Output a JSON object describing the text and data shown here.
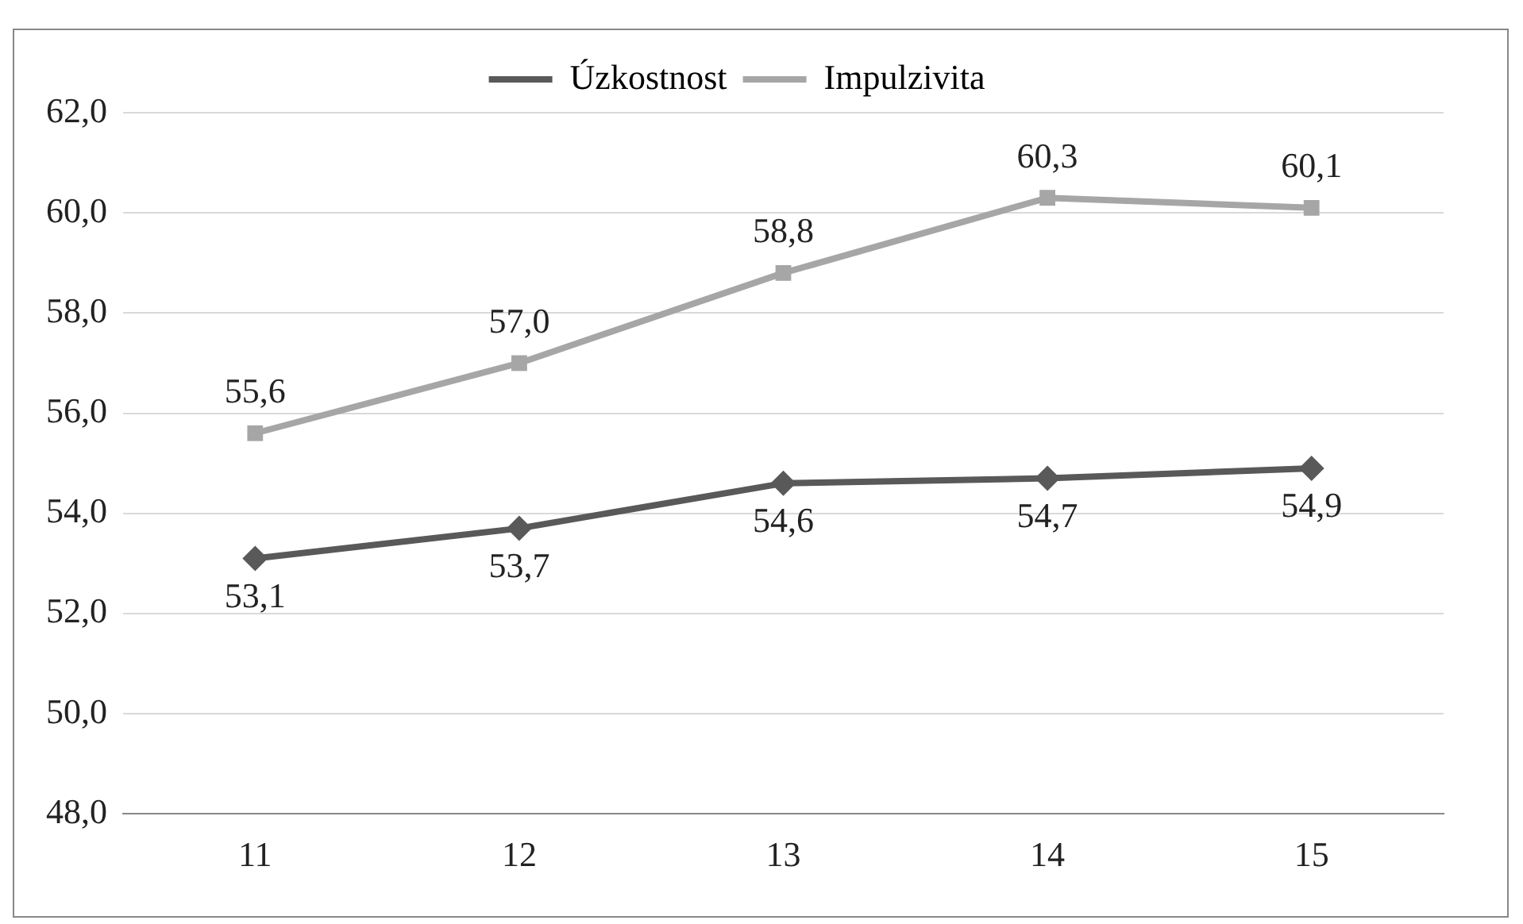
{
  "chart_data": {
    "type": "line",
    "categories": [
      "11",
      "12",
      "13",
      "14",
      "15"
    ],
    "series": [
      {
        "name": "Úzkostnost",
        "color": "#595959",
        "marker": "diamond",
        "values": [
          53.1,
          53.7,
          54.6,
          54.7,
          54.9
        ],
        "value_labels": [
          "53,1",
          "53,7",
          "54,6",
          "54,7",
          "54,9"
        ]
      },
      {
        "name": "Impulzivita",
        "color": "#a6a6a6",
        "marker": "square",
        "values": [
          55.6,
          57.0,
          58.8,
          60.3,
          60.1
        ],
        "value_labels": [
          "55,6",
          "57,0",
          "58,8",
          "60,3",
          "60,1"
        ]
      }
    ],
    "ylim": [
      48,
      62
    ],
    "yticks": [
      {
        "value": 48,
        "label": "48,0"
      },
      {
        "value": 50,
        "label": "50,0"
      },
      {
        "value": 52,
        "label": "52,0"
      },
      {
        "value": 54,
        "label": "54,0"
      },
      {
        "value": 56,
        "label": "56,0"
      },
      {
        "value": 58,
        "label": "58,0"
      },
      {
        "value": 60,
        "label": "60,0"
      },
      {
        "value": 62,
        "label": "62,0"
      }
    ],
    "grid": "y",
    "legend": "top"
  }
}
